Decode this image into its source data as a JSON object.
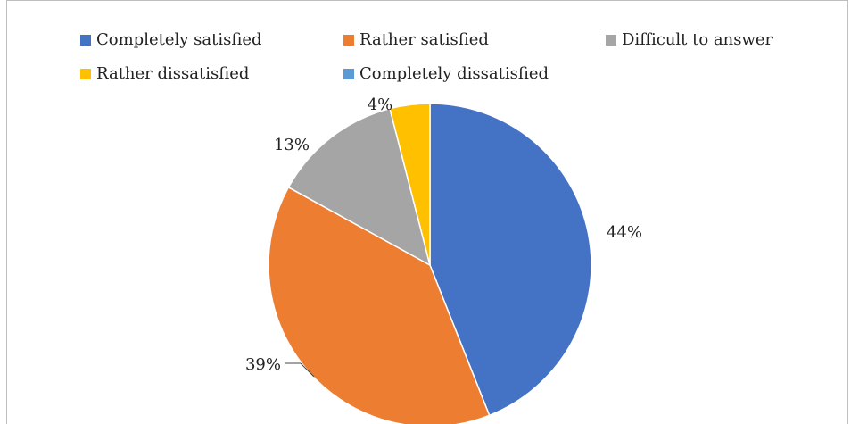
{
  "chart_data": {
    "type": "pie",
    "categories": [
      "Completely satisfied",
      "Rather satisfied",
      "Difficult to answer",
      "Rather dissatisfied",
      "Completely dissatisfied"
    ],
    "values": [
      44,
      39,
      13,
      4,
      0
    ],
    "labels": [
      "44%",
      "39%",
      "13%",
      "4%",
      ""
    ],
    "colors": [
      "#4472C4",
      "#ED7D31",
      "#A5A5A5",
      "#FFC000",
      "#5B9BD5"
    ],
    "legend_position": "top"
  }
}
